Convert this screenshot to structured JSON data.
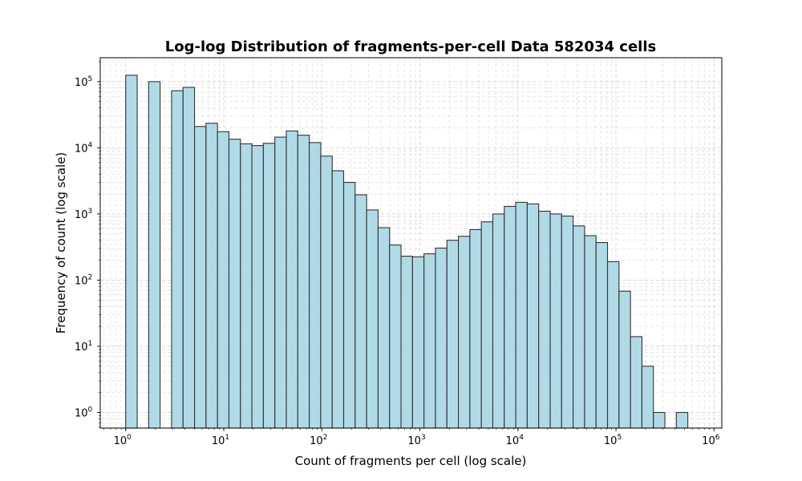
{
  "chart_data": {
    "type": "bar",
    "title": "Log-log Distribution of fragments-per-cell Data 582034 cells",
    "xlabel": "Count of fragments per cell (log scale)",
    "ylabel": "Frequency of count (log scale)",
    "xscale": "log",
    "yscale": "log",
    "xlim": [
      0.55,
      1200000.0
    ],
    "ylim": [
      0.58,
      230000
    ],
    "grid": true,
    "bar_color": "#add8e6",
    "edge_color": "#333333",
    "x_ticks": [
      {
        "base": "10",
        "exp": "0",
        "value": 1
      },
      {
        "base": "10",
        "exp": "1",
        "value": 10
      },
      {
        "base": "10",
        "exp": "2",
        "value": 100
      },
      {
        "base": "10",
        "exp": "3",
        "value": 1000
      },
      {
        "base": "10",
        "exp": "4",
        "value": 10000
      },
      {
        "base": "10",
        "exp": "5",
        "value": 100000
      },
      {
        "base": "10",
        "exp": "6",
        "value": 1000000
      }
    ],
    "y_ticks": [
      {
        "base": "10",
        "exp": "0",
        "value": 1
      },
      {
        "base": "10",
        "exp": "1",
        "value": 10
      },
      {
        "base": "10",
        "exp": "2",
        "value": 100
      },
      {
        "base": "10",
        "exp": "3",
        "value": 1000
      },
      {
        "base": "10",
        "exp": "4",
        "value": 10000
      },
      {
        "base": "10",
        "exp": "5",
        "value": 100000
      }
    ],
    "bin_edges": [
      1,
      1.30917,
      1.71393,
      2.24383,
      2.93754,
      3.84573,
      5.0347,
      6.59125,
      8.62912,
      11.2969,
      14.7896,
      19.3621,
      25.3482,
      33.185,
      43.4448,
      56.8771,
      74.462,
      97.4836,
      127.622,
      167.079,
      218.735,
      286.361,
      374.895,
      490.802,
      642.544,
      841.2,
      1101.27,
      1441.75,
      1887.5,
      2471.06,
      3235.03,
      4235.23,
      5544.62,
      7258.84,
      9502.85,
      12441.3,
      16287.6,
      21323.0,
      27915.3,
      36545.5,
      47844.5,
      62637.1,
      82002.0,
      107353,
      140544,
      183994,
      240878,
      315350,
      412843,
      540479,
      707578
    ],
    "values": [
      125000,
      0,
      100000,
      0,
      73000,
      82000,
      21000,
      23500,
      17500,
      13500,
      11500,
      10800,
      11700,
      14500,
      18000,
      15500,
      12000,
      7500,
      4500,
      3000,
      1950,
      1150,
      620,
      340,
      230,
      225,
      250,
      305,
      400,
      460,
      580,
      760,
      1000,
      1300,
      1500,
      1420,
      1100,
      1000,
      930,
      660,
      470,
      370,
      190,
      68,
      14,
      5,
      1,
      0,
      1,
      0
    ]
  }
}
